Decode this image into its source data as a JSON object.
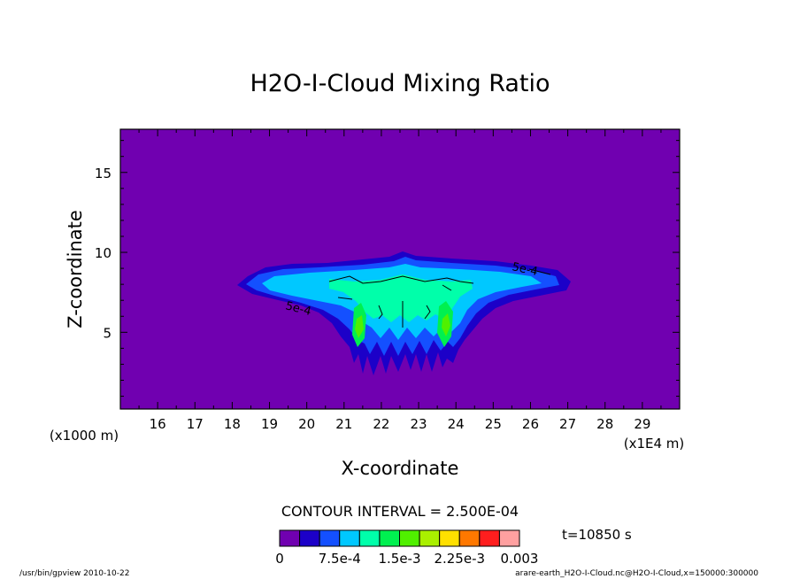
{
  "chart_data": {
    "type": "contour",
    "title": "H2O-I-Cloud Mixing Ratio",
    "xlabel": "X-coordinate",
    "ylabel": "Z-coordinate",
    "x_unit": "(x1E4 m)",
    "y_unit": "(x1000 m)",
    "xlim": [
      15,
      30
    ],
    "ylim": [
      0.2,
      17.7
    ],
    "x_ticks": [
      16,
      17,
      18,
      19,
      20,
      21,
      22,
      23,
      24,
      25,
      26,
      27,
      28,
      29
    ],
    "y_ticks": [
      5,
      10,
      15
    ],
    "contour_interval_text": "CONTOUR INTERVAL = 2.500E-04",
    "contour_labels": [
      "5e-4",
      "5e-4"
    ],
    "time_text": "t=10850 s",
    "colorbar": {
      "levels": [
        0,
        0.00025,
        0.0005,
        0.00075,
        0.001,
        0.00125,
        0.0015,
        0.00175,
        0.002,
        0.00225,
        0.0025,
        0.00275,
        0.003
      ],
      "colors": [
        "#7000b0",
        "#1c00c8",
        "#1450ff",
        "#00c8ff",
        "#00ffaa",
        "#00f050",
        "#50f000",
        "#aaf000",
        "#ffe000",
        "#ff7800",
        "#ff1e1e",
        "#ffa0a0"
      ],
      "tick_labels": [
        "0",
        "7.5e-4",
        "1.5e-3",
        "2.25e-3",
        "0.003"
      ]
    },
    "cloud_extent": {
      "x_range": [
        18.2,
        26.9
      ],
      "z_range": [
        2.3,
        10.0
      ],
      "max_value_region_x": [
        21.5,
        23.5
      ],
      "max_value_region_z": [
        5.0,
        8.5
      ]
    }
  },
  "footer": {
    "left": "/usr/bin/gpview   2010-10-22",
    "right": "arare-earth_H2O-I-Cloud.nc@H2O-I-Cloud,x=150000:300000"
  }
}
